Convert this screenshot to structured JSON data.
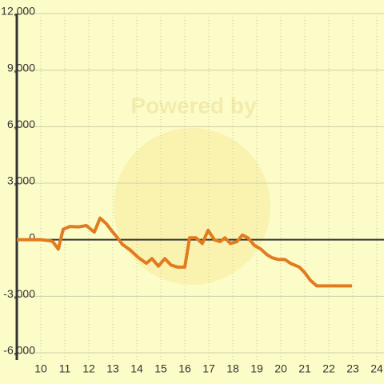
{
  "chart_data": {
    "type": "line",
    "watermark": "Powered by",
    "x": [
      9,
      10,
      10.37,
      10.5,
      10.73,
      10.93,
      11.2,
      11.57,
      11.9,
      12.23,
      12.47,
      12.73,
      12.97,
      13.2,
      13.4,
      13.73,
      14.07,
      14.4,
      14.63,
      14.9,
      15.17,
      15.43,
      15.7,
      16,
      16.2,
      16.47,
      16.73,
      16.97,
      17.23,
      17.47,
      17.67,
      17.9,
      18.17,
      18.4,
      18.63,
      18.9,
      19.17,
      19.43,
      19.63,
      19.9,
      20.17,
      20.4,
      20.77,
      21,
      21.23,
      21.5,
      21.97,
      22.97
    ],
    "series": [
      {
        "color": "#e07b20",
        "values": [
          0,
          0,
          -50,
          -100,
          -500,
          550,
          700,
          680,
          750,
          400,
          1150,
          850,
          450,
          100,
          -250,
          -550,
          -950,
          -1250,
          -1000,
          -1400,
          -1000,
          -1350,
          -1450,
          -1450,
          100,
          100,
          -200,
          500,
          0,
          -100,
          100,
          -200,
          -100,
          250,
          100,
          -300,
          -500,
          -800,
          -950,
          -1050,
          -1050,
          -1250,
          -1450,
          -1750,
          -2150,
          -2450,
          -2450,
          -2450
        ]
      }
    ],
    "xlim": [
      9,
      24.3
    ],
    "xticks": [
      10,
      11,
      12,
      13,
      14,
      15,
      16,
      17,
      18,
      19,
      20,
      21,
      22,
      23,
      24
    ],
    "ylim": [
      -6000,
      12000
    ],
    "yticks": [
      {
        "value": -6000,
        "label": "-6,000"
      },
      {
        "value": -3000,
        "label": "-3,000"
      },
      0,
      {
        "value": 3000,
        "label": "3,000"
      },
      {
        "value": 6000,
        "label": "6,000"
      },
      {
        "value": 9000,
        "label": "9,000"
      },
      {
        "value": 12000,
        "label": "12,000"
      }
    ],
    "grid": true
  }
}
